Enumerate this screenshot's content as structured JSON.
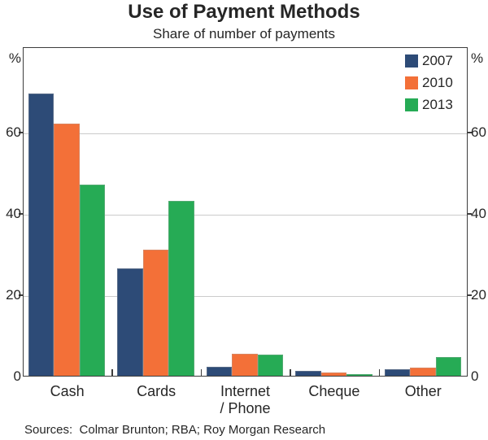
{
  "title": "Use of Payment Methods",
  "subtitle": "Share of number of payments",
  "axis": {
    "unit_left": "%",
    "unit_right": "%",
    "yticks": [
      0,
      20,
      40,
      60
    ],
    "ymax": 81
  },
  "legend": [
    {
      "label": "2007",
      "color": "#2d4b77"
    },
    {
      "label": "2010",
      "color": "#f37038"
    },
    {
      "label": "2013",
      "color": "#26ab55"
    }
  ],
  "chart_data": {
    "type": "bar",
    "title": "Use of Payment Methods",
    "subtitle": "Share of number of payments",
    "categories": [
      "Cash",
      "Cards",
      "Internet\n/ Phone",
      "Cheque",
      "Other"
    ],
    "series": [
      {
        "name": "2007",
        "color": "#2d4b77",
        "values": [
          69.5,
          26.5,
          2.3,
          1.3,
          1.6
        ]
      },
      {
        "name": "2010",
        "color": "#f37038",
        "values": [
          62,
          31,
          5.5,
          0.9,
          2.1
        ]
      },
      {
        "name": "2013",
        "color": "#26ab55",
        "values": [
          47,
          43,
          5.2,
          0.5,
          4.7
        ]
      }
    ],
    "xlabel": "",
    "ylabel": "%",
    "ylim": [
      0,
      81
    ],
    "yticks": [
      0,
      20,
      40,
      60
    ],
    "grid": true,
    "legend_position": "top-right"
  },
  "footer": {
    "sources": "Sources:  Colmar Brunton; RBA; Roy Morgan Research"
  }
}
